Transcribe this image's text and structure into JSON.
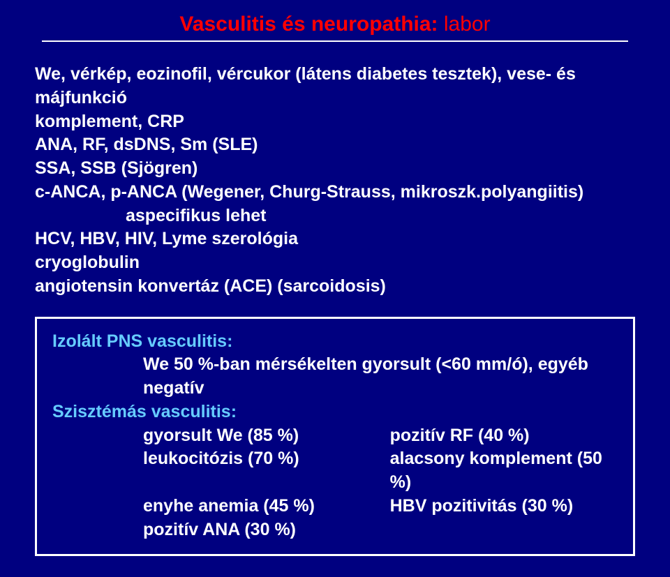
{
  "title": {
    "main": "Vasculitis és neuropathia:",
    "labor": " labor",
    "fontsize": 30,
    "color": "#ff0000"
  },
  "body": {
    "fontsize": 25,
    "color": "#ffffff",
    "lines": {
      "l1": "We, vérkép, eozinofil, vércukor (látens diabetes tesztek), vese- és májfunkció",
      "l2": "komplement, CRP",
      "l3": "ANA, RF, dsDNS, Sm (SLE)",
      "l4": "SSA, SSB (Sjögren)",
      "l5": "c-ANCA, p-ANCA (Wegener, Churg-Strauss, mikroszk.polyangiitis)",
      "l5_indent": "aspecifikus lehet",
      "l6": "HCV, HBV, HIV, Lyme szerológia",
      "l7": "cryoglobulin",
      "l8": "angiotensin konvertáz (ACE) (sarcoidosis)"
    }
  },
  "box": {
    "border_color": "#ffffff",
    "heading_color": "#66ccff",
    "fontsize": 25,
    "heading1": "Izolált PNS vasculitis:",
    "line1": "We 50 %-ban mérsékelten gyorsult (<60 mm/ó), egyéb negatív",
    "heading2": "Szisztémás vasculitis:",
    "rows": {
      "r1l": "gyorsult We (85 %)",
      "r1r": "pozitív RF (40 %)",
      "r2l": "leukocitózis (70 %)",
      "r2r": "alacsony komplement (50 %)",
      "r3l": "enyhe anemia (45 %)",
      "r3r": "HBV pozitivitás (30 %)",
      "r4l": "pozitív ANA (30 %)",
      "r4r": ""
    }
  },
  "bg_color": "#000080"
}
